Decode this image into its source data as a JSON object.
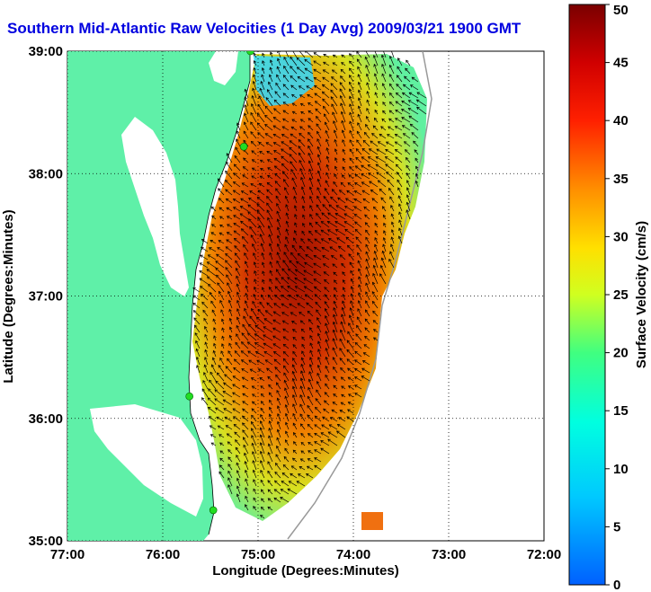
{
  "title": "Southern Mid-Atlantic Raw Velocities (1 Day Avg) 2009/03/21 1900 GMT",
  "x_axis": {
    "label": "Longitude (Degrees:Minutes)",
    "ticks": [
      "77:00",
      "76:00",
      "75:00",
      "74:00",
      "73:00",
      "72:00"
    ],
    "values": [
      -77,
      -76,
      -75,
      -74,
      -73,
      -72
    ],
    "range": [
      -77,
      -72
    ]
  },
  "y_axis": {
    "label": "Latitude (Degrees:Minutes)",
    "ticks": [
      "35:00",
      "36:00",
      "37:00",
      "38:00",
      "39:00"
    ],
    "values": [
      35,
      36,
      37,
      38,
      39
    ],
    "range": [
      35,
      39
    ]
  },
  "colorbar": {
    "label": "Surface Velocity (cm/s)",
    "ticks": [
      "0",
      "5",
      "10",
      "15",
      "20",
      "25",
      "30",
      "35",
      "40",
      "45",
      "50"
    ],
    "values": [
      0,
      5,
      10,
      15,
      20,
      25,
      30,
      35,
      40,
      45,
      50
    ],
    "range": [
      0,
      50
    ]
  },
  "grid": "dotted",
  "colors": {
    "land": "#5ff0a8",
    "water": "#ffffff",
    "arrows": "#000000",
    "stations": "#22dd22",
    "title": "#0000e0"
  },
  "stations": [
    {
      "lon": -75.08,
      "lat": 39.0
    },
    {
      "lon": -75.15,
      "lat": 38.22
    },
    {
      "lon": -75.72,
      "lat": 36.18
    },
    {
      "lon": -75.47,
      "lat": 35.25
    }
  ]
}
